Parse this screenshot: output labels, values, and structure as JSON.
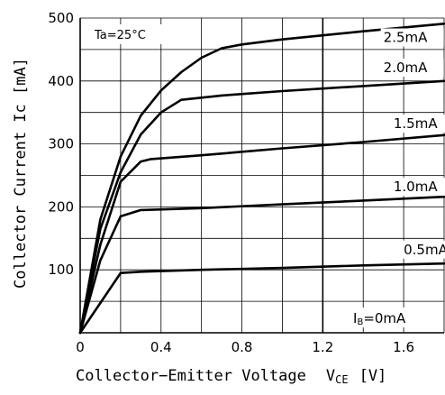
{
  "chart_data": {
    "type": "line",
    "xlabel": "Collector−Emitter Voltage",
    "xlabel_symbol": "V",
    "xlabel_subscript": "CE",
    "xlabel_unit": "[V]",
    "ylabel": "Collector Current  Ic [mA]",
    "xlim": [
      0,
      1.8
    ],
    "ylim": [
      0,
      500
    ],
    "x_ticks": [
      {
        "value": 0,
        "label": "0"
      },
      {
        "value": 0.4,
        "label": "0.4"
      },
      {
        "value": 0.8,
        "label": "0.8"
      },
      {
        "value": 1.2,
        "label": "1.2"
      },
      {
        "value": 1.6,
        "label": "1.6"
      }
    ],
    "y_ticks": [
      {
        "value": 100,
        "label": "100"
      },
      {
        "value": 200,
        "label": "200"
      },
      {
        "value": 300,
        "label": "300"
      },
      {
        "value": 400,
        "label": "400"
      },
      {
        "value": 500,
        "label": "500"
      }
    ],
    "x_grid_step": 0.2,
    "y_grid_step": 50,
    "bold_gridline_x": 1.2,
    "grid": true,
    "annotation": "Ta=25°C",
    "baseline_label": "IB=0mA",
    "baseline_label_parts": {
      "symbol": "I",
      "subscript": "B",
      "value": "=0mA"
    },
    "series": [
      {
        "name": "0.5mA",
        "label_at": [
          1.6,
          125
        ],
        "x": [
          0,
          0.2,
          0.3,
          0.6,
          1.0,
          1.4,
          1.8
        ],
        "y": [
          0,
          95,
          97,
          100,
          103,
          107,
          110
        ]
      },
      {
        "name": "1.0mA",
        "label_at": [
          1.55,
          225
        ],
        "x": [
          0,
          0.1,
          0.2,
          0.3,
          0.6,
          1.0,
          1.4,
          1.8
        ],
        "y": [
          0,
          115,
          185,
          195,
          198,
          204,
          210,
          216
        ]
      },
      {
        "name": "1.5mA",
        "label_at": [
          1.55,
          325
        ],
        "x": [
          0,
          0.1,
          0.2,
          0.3,
          0.35,
          0.6,
          1.0,
          1.4,
          1.8
        ],
        "y": [
          0,
          140,
          240,
          272,
          276,
          282,
          293,
          303,
          314
        ]
      },
      {
        "name": "2.0mA",
        "label_at": [
          1.5,
          414
        ],
        "x": [
          0,
          0.1,
          0.2,
          0.3,
          0.4,
          0.5,
          0.7,
          1.0,
          1.4,
          1.8
        ],
        "y": [
          0,
          165,
          255,
          315,
          350,
          370,
          377,
          384,
          392,
          400
        ]
      },
      {
        "name": "2.5mA",
        "label_at": [
          1.5,
          462
        ],
        "x": [
          0,
          0.1,
          0.2,
          0.3,
          0.4,
          0.5,
          0.6,
          0.7,
          0.8,
          1.0,
          1.4,
          1.8
        ],
        "y": [
          0,
          180,
          280,
          345,
          385,
          414,
          437,
          452,
          458,
          466,
          479,
          491
        ]
      }
    ]
  }
}
